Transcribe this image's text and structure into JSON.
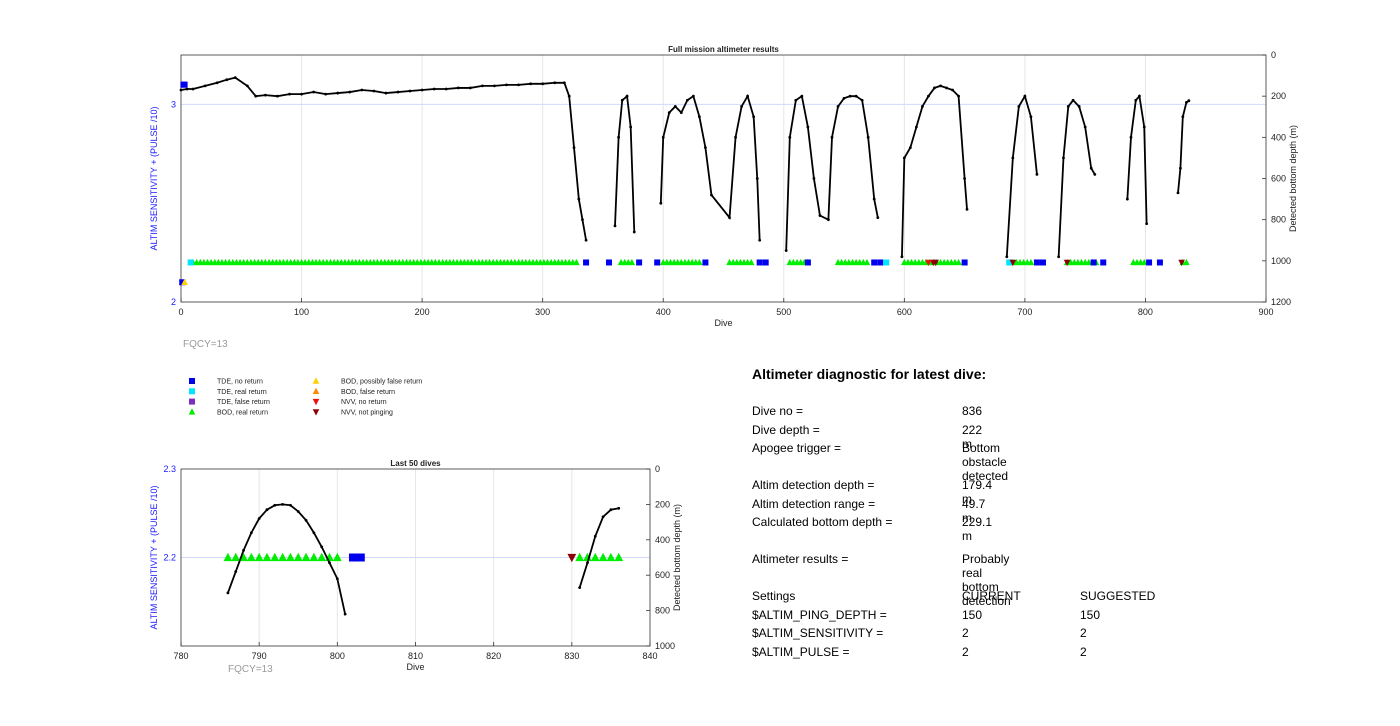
{
  "chart_data": [
    {
      "type": "scatter",
      "title": "Full mission altimeter results",
      "xlabel": "Dive",
      "ylabel_left": "ALTIM SENSITIVITY + (PULSE /10)",
      "ylabel_right": "Detected bottom depth (m)",
      "xlim": [
        0,
        900
      ],
      "ylim_left": [
        2,
        3.25
      ],
      "ylim_right": [
        1200,
        0
      ],
      "xticks": [
        "0",
        "100",
        "200",
        "300",
        "400",
        "500",
        "600",
        "700",
        "800",
        "900"
      ],
      "yticks_left": [
        "2",
        "3"
      ],
      "yticks_right": [
        "0",
        "200",
        "400",
        "600",
        "800",
        "1000",
        "1200"
      ],
      "grid": true,
      "note": "FQCY=13",
      "bottom_depth_curve": {
        "x": [
          0,
          5,
          10,
          20,
          30,
          38,
          45,
          55,
          62,
          70,
          80,
          90,
          100,
          110,
          120,
          130,
          140,
          150,
          160,
          170,
          180,
          190,
          200,
          210,
          220,
          230,
          240,
          250,
          260,
          270,
          280,
          290,
          300,
          310,
          318,
          322,
          326,
          330,
          333,
          336,
          360,
          363,
          366,
          370,
          373,
          376,
          398,
          400,
          405,
          410,
          415,
          420,
          425,
          430,
          435,
          440,
          455,
          460,
          465,
          470,
          475,
          478,
          480,
          502,
          505,
          510,
          515,
          520,
          525,
          530,
          537,
          540,
          545,
          550,
          555,
          560,
          565,
          570,
          575,
          578,
          598,
          600,
          605,
          610,
          615,
          620,
          625,
          630,
          635,
          640,
          645,
          650,
          652,
          685,
          690,
          695,
          700,
          705,
          710,
          728,
          732,
          736,
          740,
          745,
          750,
          755,
          758,
          785,
          788,
          792,
          795,
          799,
          801,
          827,
          829,
          831,
          834,
          836
        ],
        "y": [
          170,
          165,
          165,
          150,
          135,
          120,
          110,
          150,
          200,
          195,
          200,
          190,
          190,
          180,
          190,
          185,
          180,
          170,
          175,
          185,
          180,
          175,
          170,
          165,
          165,
          160,
          160,
          150,
          150,
          145,
          145,
          140,
          140,
          135,
          135,
          200,
          450,
          700,
          800,
          900,
          830,
          400,
          220,
          200,
          350,
          860,
          720,
          400,
          280,
          250,
          280,
          220,
          200,
          300,
          450,
          680,
          790,
          400,
          250,
          200,
          300,
          600,
          900,
          950,
          400,
          220,
          200,
          350,
          600,
          780,
          800,
          400,
          250,
          210,
          200,
          200,
          220,
          400,
          700,
          790,
          980,
          500,
          450,
          350,
          250,
          200,
          160,
          150,
          160,
          170,
          200,
          600,
          750,
          980,
          500,
          250,
          200,
          300,
          580,
          980,
          500,
          250,
          220,
          250,
          350,
          550,
          580,
          700,
          400,
          220,
          200,
          350,
          820,
          670,
          550,
          300,
          230,
          222
        ]
      },
      "legend_markers": [
        {
          "name": "TDE, no return",
          "color": "#0000ee",
          "shape": "square"
        },
        {
          "name": "TDE, real return",
          "color": "#00e5ff",
          "shape": "square"
        },
        {
          "name": "TDE, false return",
          "color": "#7f2fbf",
          "shape": "square"
        },
        {
          "name": "BOD, real return",
          "color": "#00ee00",
          "shape": "triangle-up"
        },
        {
          "name": "BOD, possibly false return",
          "color": "#ffd000",
          "shape": "triangle-up"
        },
        {
          "name": "BOD, false return",
          "color": "#ff8800",
          "shape": "triangle-up"
        },
        {
          "name": "NVV, no return",
          "color": "#ee1111",
          "shape": "triangle-down"
        },
        {
          "name": "NVV, not pinging",
          "color": "#8b0000",
          "shape": "triangle-down"
        }
      ],
      "sensitivity_markers": [
        {
          "series": "BOD, real return",
          "level": 2.2,
          "segments": [
            [
              10,
              330
            ],
            [
              365,
              375
            ],
            [
              400,
              430
            ],
            [
              455,
              475
            ],
            [
              505,
              520
            ],
            [
              545,
              570
            ],
            [
              600,
              645
            ],
            [
              690,
              705
            ],
            [
              735,
              760
            ],
            [
              790,
              800
            ],
            [
              831,
              836
            ]
          ]
        },
        {
          "series": "TDE, no return",
          "level": 2.2,
          "x": [
            336,
            355,
            380,
            395,
            435,
            480,
            485,
            520,
            575,
            580,
            650,
            710,
            715,
            757,
            765,
            803,
            812
          ]
        },
        {
          "series": "TDE, real return",
          "level": 2.2,
          "x": [
            8,
            585,
            687
          ]
        },
        {
          "series": "NVV, not pinging",
          "level": 2.2,
          "x": [
            624,
            626,
            690,
            735,
            830
          ]
        },
        {
          "series": "NVV, no return",
          "level": 2.2,
          "x": [
            620
          ]
        },
        {
          "series": "TDE, no return",
          "level": 3.1,
          "x": [
            2,
            3
          ]
        },
        {
          "series": "TDE, no return",
          "level": 2.1,
          "x": [
            1
          ]
        },
        {
          "series": "BOD, possibly false return",
          "level": 2.1,
          "x": [
            3
          ]
        }
      ]
    },
    {
      "type": "scatter",
      "title": "Last 50 dives",
      "xlabel": "Dive",
      "ylabel_left": "ALTIM SENSITIVITY + (PULSE /10)",
      "ylabel_right": "Detected bottom depth (m)",
      "xlim": [
        780,
        840
      ],
      "ylim_left": [
        2.1,
        2.3
      ],
      "ylim_right": [
        1000,
        0
      ],
      "xticks": [
        "780",
        "790",
        "800",
        "810",
        "820",
        "830",
        "840"
      ],
      "yticks_left": [
        "2.2",
        "2.3"
      ],
      "yticks_right": [
        "0",
        "200",
        "400",
        "600",
        "800",
        "1000"
      ],
      "grid": true,
      "note": "FQCY=13",
      "bottom_depth_curve": [
        {
          "x": [
            786,
            787,
            788,
            789,
            790,
            791,
            792,
            793,
            794,
            795,
            796,
            797,
            798,
            799,
            800,
            801
          ],
          "y": [
            700,
            580,
            460,
            360,
            280,
            230,
            205,
            200,
            205,
            240,
            290,
            360,
            440,
            530,
            620,
            820
          ]
        },
        {
          "x": [
            831,
            832,
            833,
            834,
            835,
            836
          ],
          "y": [
            670,
            530,
            380,
            270,
            230,
            222
          ]
        }
      ],
      "sensitivity_markers": [
        {
          "series": "BOD, real return",
          "level": 2.2,
          "x": [
            786,
            787,
            788,
            789,
            790,
            791,
            792,
            793,
            794,
            795,
            796,
            797,
            798,
            799,
            800,
            831,
            832,
            833,
            834,
            835,
            836
          ]
        },
        {
          "series": "TDE, no return",
          "level": 2.2,
          "x": [
            802,
            803
          ]
        },
        {
          "series": "NVV, not pinging",
          "level": 2.2,
          "x": [
            830
          ]
        }
      ]
    }
  ],
  "diagnostic": {
    "heading": "Altimeter diagnostic for latest dive:",
    "rows1": [
      {
        "label": "Dive no =",
        "value": "836"
      },
      {
        "label": "Dive depth =",
        "value": "222 m"
      },
      {
        "label": "Apogee trigger =",
        "value": "Bottom obstacle detected"
      }
    ],
    "rows2": [
      {
        "label": "Altim detection depth =",
        "value": "179.4 m"
      },
      {
        "label": "Altim detection range =",
        "value": "49.7 m"
      },
      {
        "label": "Calculated bottom depth =",
        "value": "229.1 m"
      }
    ],
    "result": {
      "label": "Altimeter results =",
      "value": "Probably real bottom detection"
    },
    "settings_header": {
      "label": "Settings",
      "current": "CURRENT",
      "suggested": "SUGGESTED"
    },
    "settings": [
      {
        "label": "$ALTIM_PING_DEPTH =",
        "current": "150",
        "suggested": "150"
      },
      {
        "label": "$ALTIM_SENSITIVITY =",
        "current": "2",
        "suggested": "2"
      },
      {
        "label": "$ALTIM_PULSE =",
        "current": "2",
        "suggested": "2"
      }
    ]
  }
}
